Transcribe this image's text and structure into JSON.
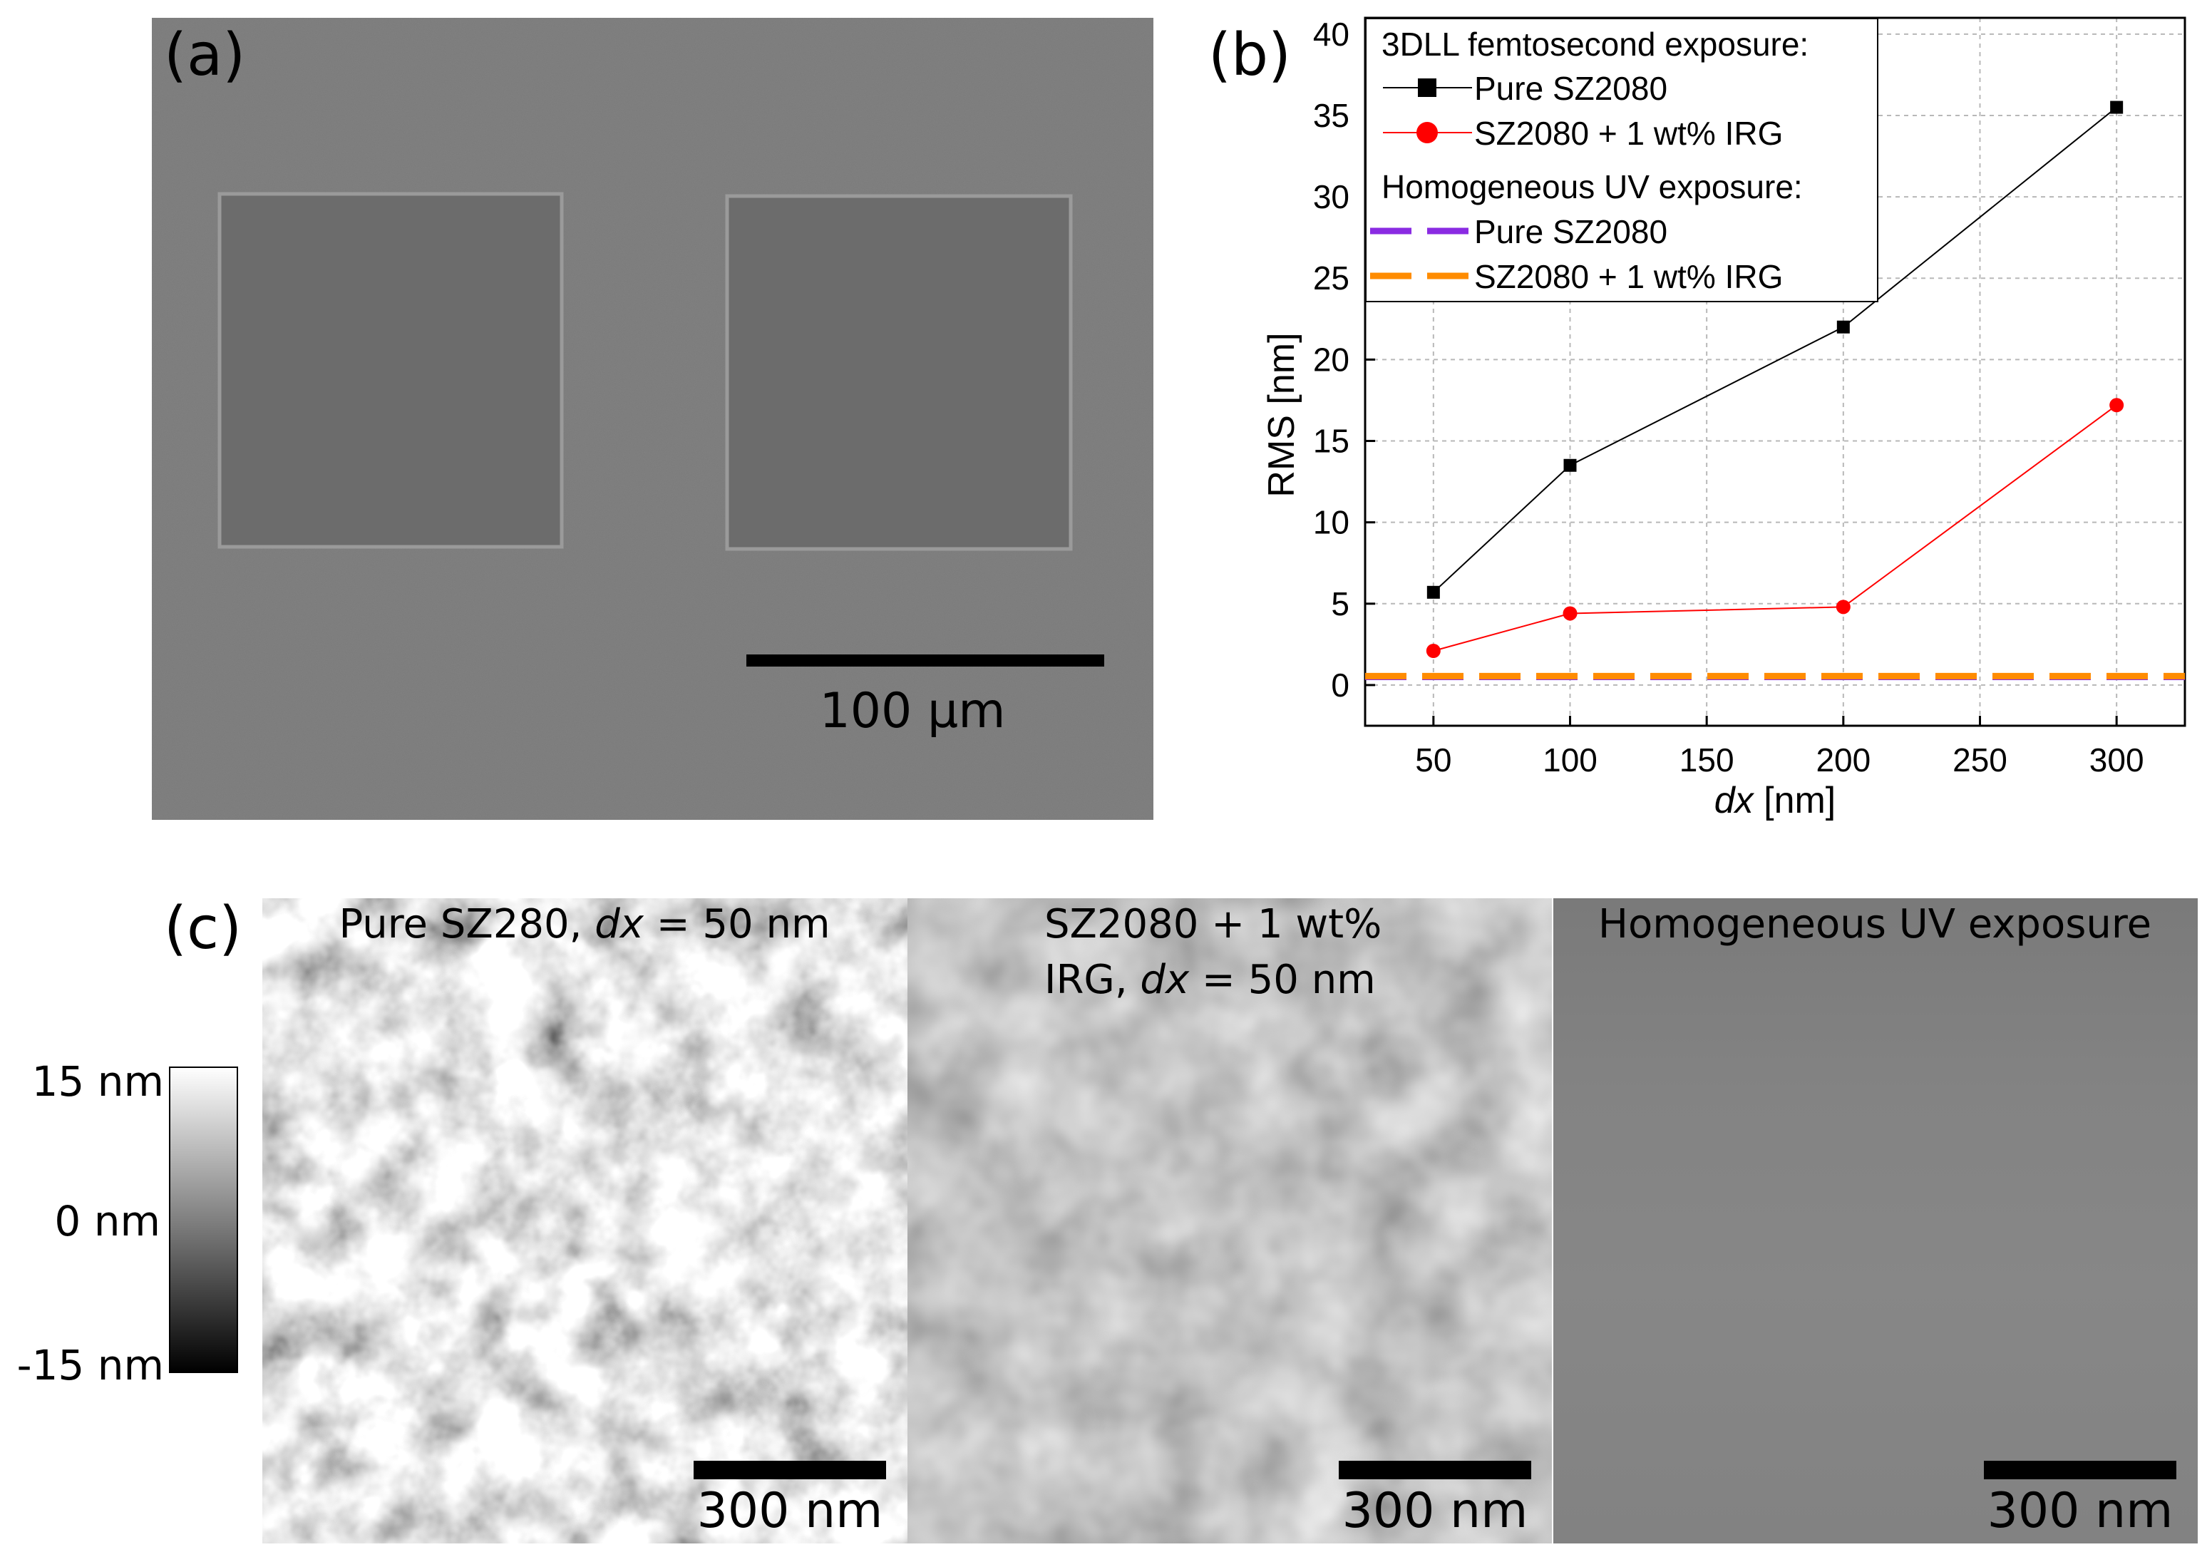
{
  "panel_a": {
    "label": "(a)",
    "scalebar_label": "100 µm"
  },
  "panel_b": {
    "label": "(b)"
  },
  "panel_c": {
    "label": "(c)",
    "images": [
      {
        "title_line1": "Pure SZ280, ",
        "title_italic": "dx",
        "title_rest": " = 50 nm",
        "title_line2": "",
        "scalebar_label": "300 nm"
      },
      {
        "title_line1": "SZ2080 + 1 wt%",
        "title_line2": "IRG, ",
        "title_italic": "dx",
        "title_rest": " = 50 nm",
        "scalebar_label": "300 nm"
      },
      {
        "title_line1": "Homogeneous UV exposure",
        "title_line2": "",
        "title_italic": "",
        "title_rest": "",
        "scalebar_label": "300 nm"
      }
    ],
    "colorbar": {
      "max_label": "15 nm",
      "mid_label": "0 nm",
      "min_label": "-15 nm"
    }
  },
  "chart_data": {
    "type": "line",
    "xlabel_italic": "dx",
    "xlabel_rest": " [nm]",
    "ylabel": "RMS [nm]",
    "xlim": [
      25,
      325
    ],
    "ylim": [
      -2.5,
      41
    ],
    "xticks": [
      50,
      100,
      150,
      200,
      250,
      300
    ],
    "yticks": [
      0,
      5,
      10,
      15,
      20,
      25,
      30,
      35,
      40
    ],
    "grid": true,
    "legend_position": "top-left",
    "legend_headers": [
      "3DLL femtosecond exposure:",
      "Homogeneous UV exposure:"
    ],
    "series": [
      {
        "name": "Pure SZ2080",
        "group": "3DLL femtosecond exposure:",
        "x": [
          50,
          100,
          200,
          300
        ],
        "y": [
          5.7,
          13.5,
          22.0,
          35.5
        ],
        "color": "#000000",
        "marker": "square",
        "style": "solid"
      },
      {
        "name": "SZ2080 + 1  wt% IRG",
        "group": "3DLL femtosecond exposure:",
        "x": [
          50,
          100,
          200,
          300
        ],
        "y": [
          2.1,
          4.4,
          4.8,
          17.2
        ],
        "color": "#ff0000",
        "marker": "circle",
        "style": "solid"
      },
      {
        "name": "Pure SZ2080",
        "group": "Homogeneous UV exposure:",
        "constant": 0.5,
        "color": "#8a2be2",
        "style": "dashed"
      },
      {
        "name": "SZ2080 + 1  wt% IRG",
        "group": "Homogeneous UV exposure:",
        "constant": 0.55,
        "color": "#ff8c00",
        "style": "dashed"
      }
    ]
  }
}
